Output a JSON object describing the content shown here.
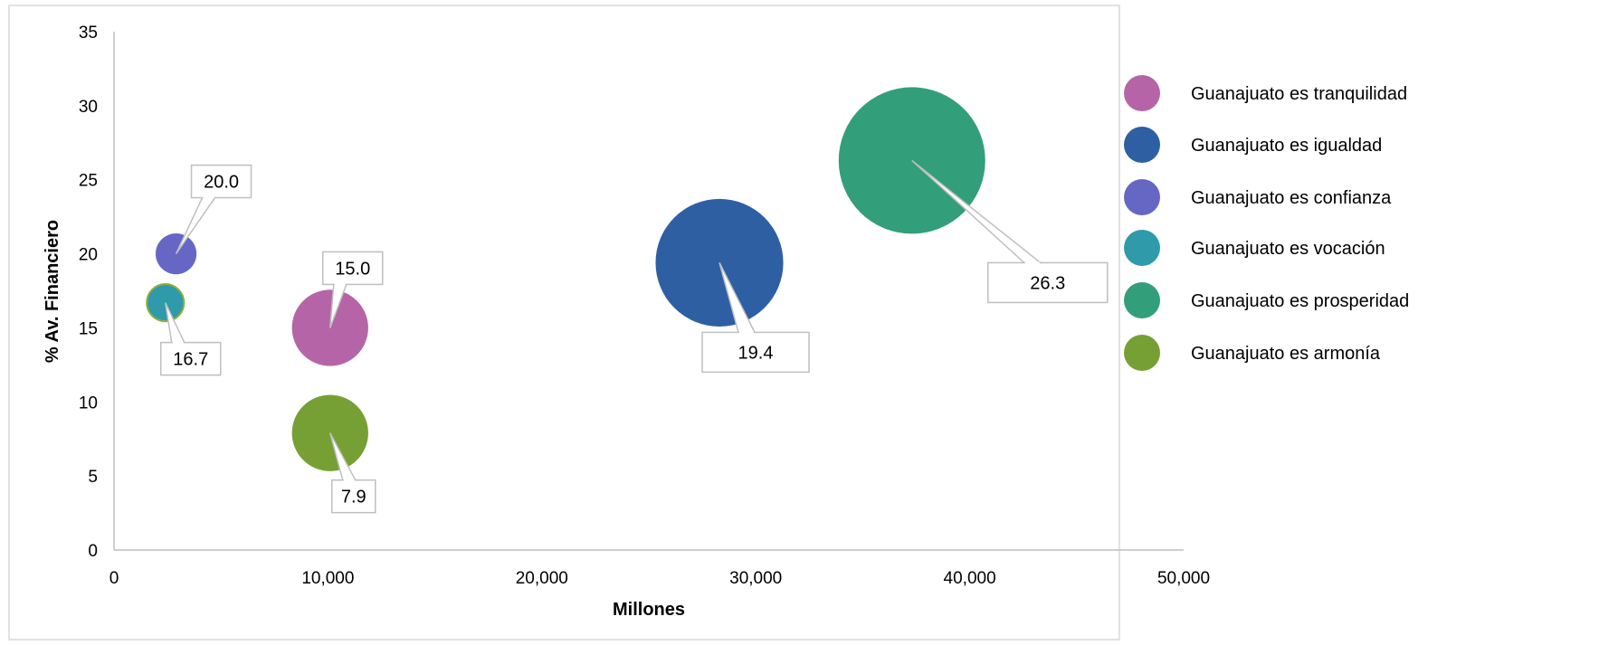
{
  "chart_data": {
    "type": "bubble",
    "xlabel": "Millones",
    "ylabel": "% Av. Financiero",
    "xlim": [
      0,
      50000
    ],
    "ylim": [
      0,
      35
    ],
    "x_ticks": [
      0,
      10000,
      20000,
      30000,
      40000,
      50000
    ],
    "x_tick_labels": [
      "0",
      "10,000",
      "20,000",
      "30,000",
      "40,000",
      "50,000"
    ],
    "y_ticks": [
      0,
      5,
      10,
      15,
      20,
      25,
      30,
      35
    ],
    "y_tick_labels": [
      "0",
      "5",
      "10",
      "15",
      "20",
      "25",
      "30",
      "35"
    ],
    "grid": false,
    "legend_position": "right",
    "series": [
      {
        "name": "Guanajuato es tranquilidad",
        "color": "#B565A7",
        "x": 10100,
        "y": 15.0,
        "size": 10100,
        "label": "15.0"
      },
      {
        "name": "Guanajuato es igualdad",
        "color": "#2E5FA3",
        "x": 28300,
        "y": 19.4,
        "size": 28300,
        "label": "19.4"
      },
      {
        "name": "Guanajuato es confianza",
        "color": "#6667C4",
        "x": 2900,
        "y": 20.0,
        "size": 2900,
        "label": "20.0"
      },
      {
        "name": "Guanajuato es vocación",
        "color": "#2E9AAA",
        "x": 2400,
        "y": 16.7,
        "size": 2400,
        "label": "16.7"
      },
      {
        "name": "Guanajuato es prosperidad",
        "color": "#339E7A",
        "x": 37300,
        "y": 26.3,
        "size": 37300,
        "label": "26.3"
      },
      {
        "name": "Guanajuato es armonía",
        "color": "#76A033",
        "x": 10100,
        "y": 7.9,
        "size": 10100,
        "label": "7.9"
      }
    ]
  }
}
